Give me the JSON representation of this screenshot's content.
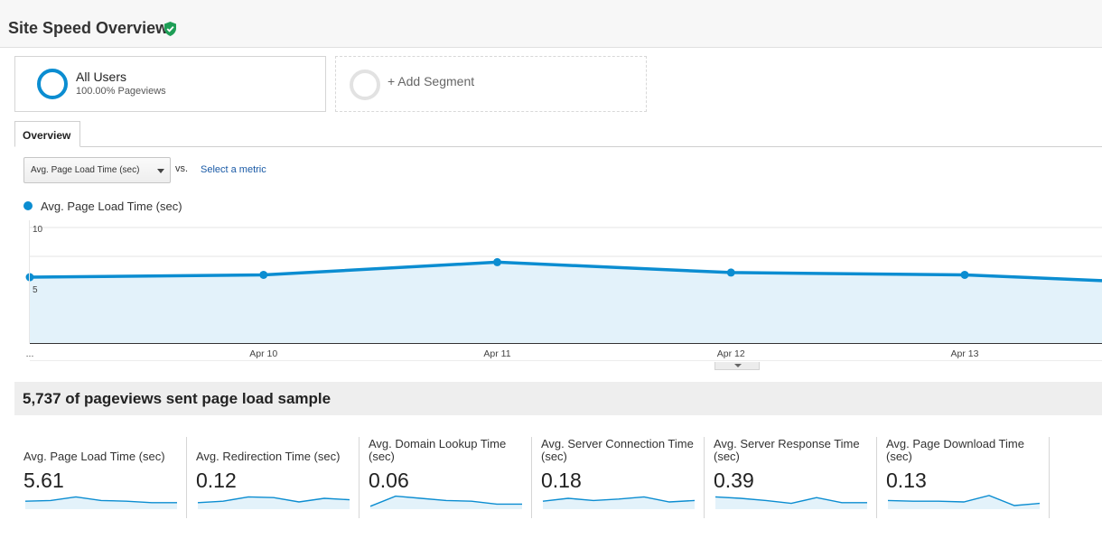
{
  "header": {
    "title": "Site Speed Overview",
    "verified_icon": "shield-check-icon"
  },
  "segments": {
    "active": {
      "name": "All Users",
      "detail": "100.00% Pageviews",
      "color": "#0b8dd1"
    },
    "add_label": "+ Add Segment"
  },
  "tabs": {
    "overview": "Overview"
  },
  "controls": {
    "metric_selected": "Avg. Page Load Time (sec)",
    "vs_label": "vs.",
    "select_metric_link": "Select a metric"
  },
  "chart_data": {
    "type": "area",
    "legend": "Avg. Page Load Time (sec)",
    "y_ticks": [
      "10",
      "5"
    ],
    "ylim": [
      0,
      10
    ],
    "x_labels": [
      "...",
      "Apr 10",
      "Apr 11",
      "Apr 12",
      "Apr 13"
    ],
    "x_positions": [
      0,
      1,
      2,
      3,
      4,
      4.6
    ],
    "values": [
      5.7,
      5.9,
      7.0,
      6.1,
      5.9,
      5.4
    ],
    "line_color": "#0b8dd1",
    "fill_color": "#e3f2fa",
    "grid": true
  },
  "sample": {
    "text": "5,737 of pageviews sent page load sample"
  },
  "kpis": [
    {
      "label": "Avg. Page Load Time (sec)",
      "value": "5.61",
      "spark": [
        0.55,
        0.6,
        0.85,
        0.6,
        0.55,
        0.45,
        0.45
      ]
    },
    {
      "label": "Avg. Redirection Time (sec)",
      "value": "0.12",
      "spark": [
        0.45,
        0.55,
        0.85,
        0.8,
        0.5,
        0.75,
        0.65
      ]
    },
    {
      "label": "Avg. Domain Lookup Time (sec)",
      "value": "0.06",
      "spark": [
        0.2,
        0.9,
        0.75,
        0.6,
        0.55,
        0.35,
        0.35
      ]
    },
    {
      "label": "Avg. Server Connection Time (sec)",
      "value": "0.18",
      "spark": [
        0.55,
        0.75,
        0.6,
        0.7,
        0.85,
        0.5,
        0.6
      ]
    },
    {
      "label": "Avg. Server Response Time (sec)",
      "value": "0.39",
      "spark": [
        0.85,
        0.75,
        0.6,
        0.4,
        0.8,
        0.45,
        0.45
      ]
    },
    {
      "label": "Avg. Page Download Time (sec)",
      "value": "0.13",
      "spark": [
        0.6,
        0.55,
        0.55,
        0.5,
        0.95,
        0.25,
        0.4
      ]
    }
  ]
}
